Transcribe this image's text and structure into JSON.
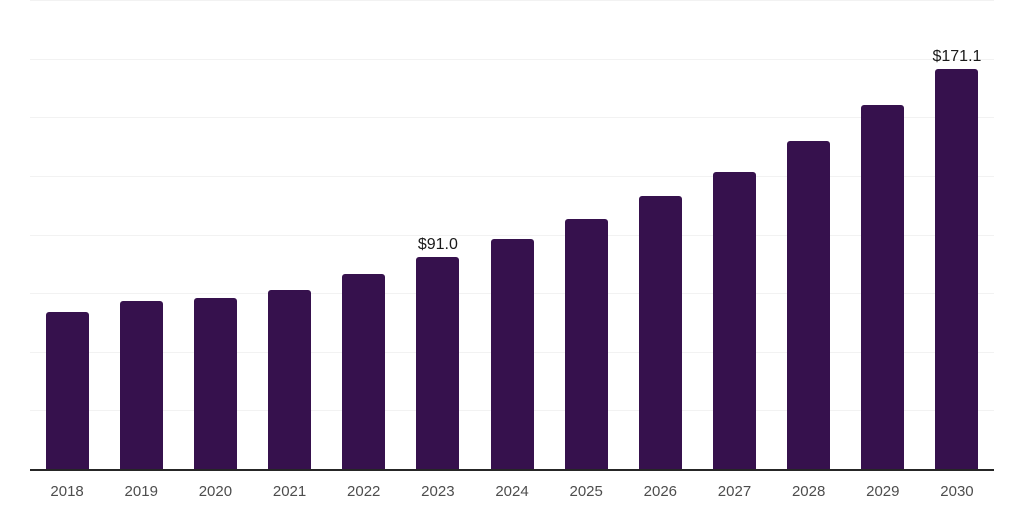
{
  "chart_data": {
    "type": "bar",
    "title": "",
    "categories": [
      "2018",
      "2019",
      "2020",
      "2021",
      "2022",
      "2023",
      "2024",
      "2025",
      "2026",
      "2027",
      "2028",
      "2029",
      "2030"
    ],
    "values": [
      67.2,
      71.9,
      73.5,
      76.9,
      83.4,
      91.0,
      98.4,
      106.9,
      116.9,
      127.2,
      140.1,
      155.6,
      171.1
    ],
    "data_labels": {
      "2023": "$91.0",
      "2030": "$171.1"
    },
    "xlabel": "",
    "ylabel": "",
    "ylim": [
      0,
      200
    ],
    "grid_step": 25,
    "grid": true,
    "legend": false,
    "colors": {
      "bar": "#36114D",
      "gridline": "#F2F2F2",
      "axis": "#262626",
      "tick_label": "#4D4D4D",
      "value_label": "#1A1A1A",
      "background": "#FFFFFF"
    }
  }
}
